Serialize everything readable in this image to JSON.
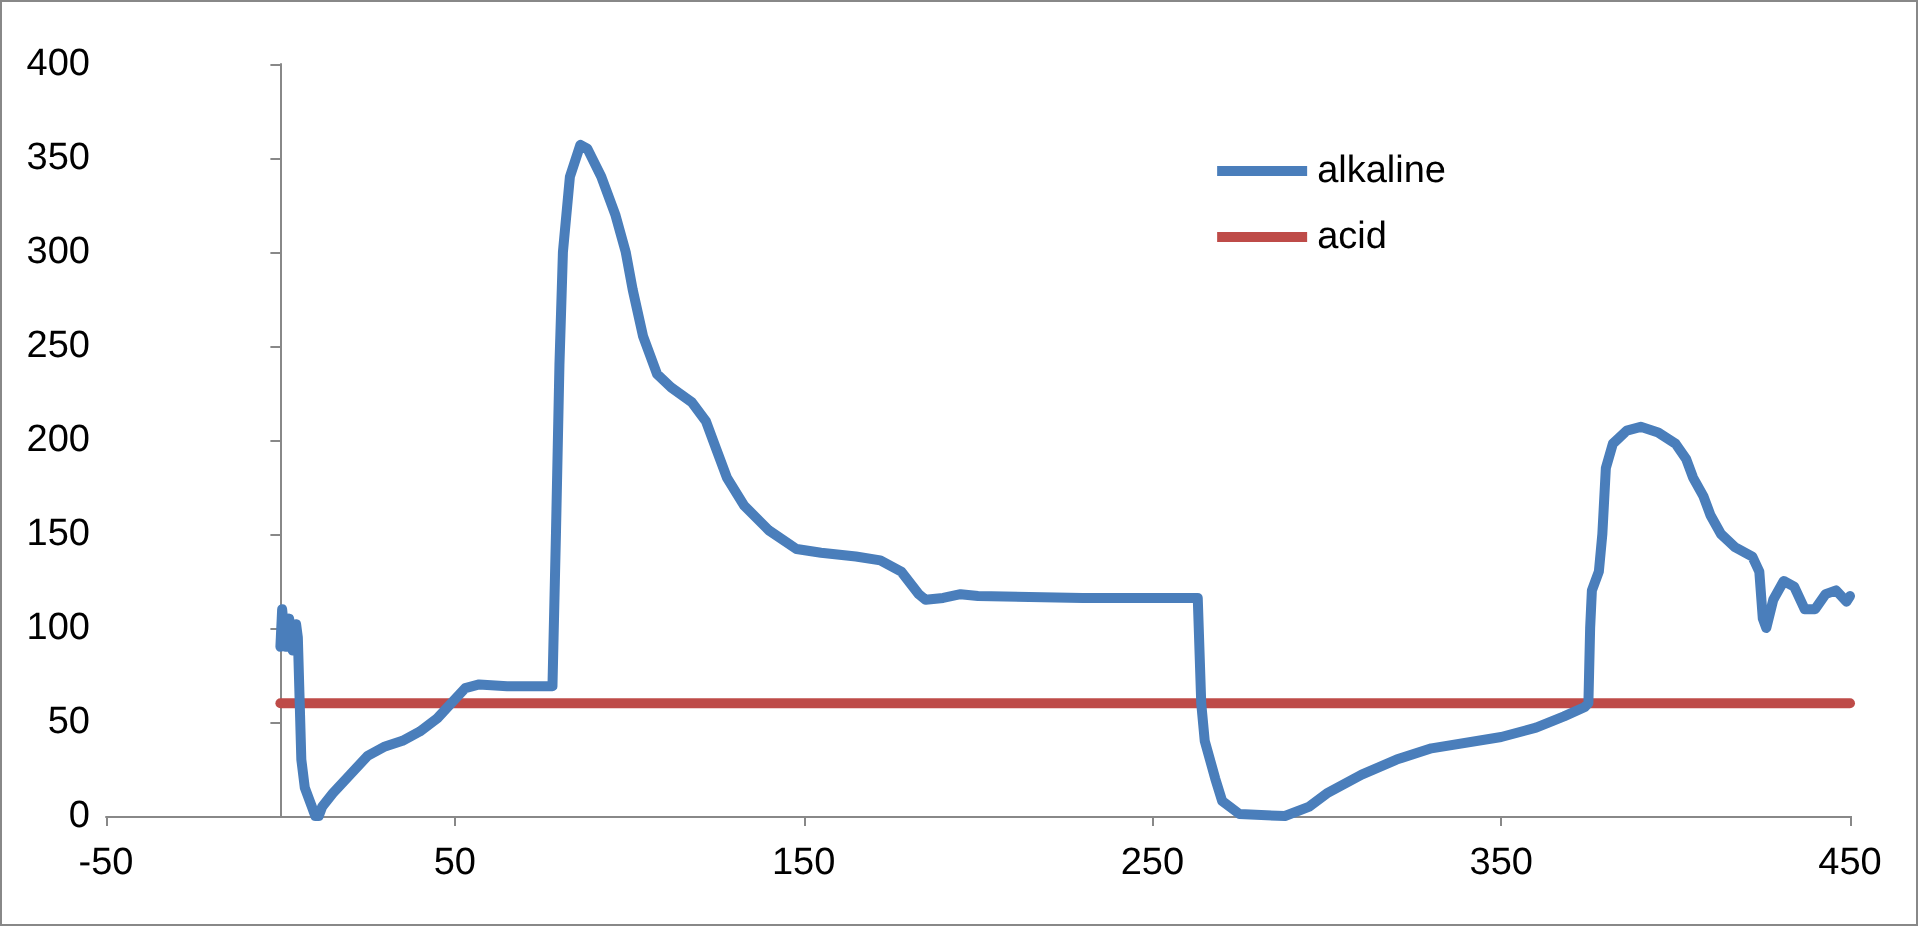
{
  "chart_data": {
    "type": "line",
    "xlim": [
      -50,
      450
    ],
    "xticks": [
      -50,
      50,
      150,
      250,
      350,
      450
    ],
    "ylim": [
      0,
      400
    ],
    "yticks": [
      0,
      50,
      100,
      150,
      200,
      250,
      300,
      350,
      400
    ],
    "grid": false,
    "legend": "top right",
    "marker": "none",
    "line_style": "solid",
    "series": [
      {
        "name": "alkaline",
        "color": "#4a7ebb",
        "x": [
          0,
          0.5,
          1.5,
          2.5,
          3.5,
          4.5,
          5,
          6,
          7,
          9,
          10,
          11,
          12,
          15,
          20,
          25,
          30,
          35,
          40,
          45,
          50,
          53,
          57,
          65,
          75,
          78,
          79,
          80,
          81,
          83,
          86,
          88,
          92,
          96,
          99,
          101,
          104,
          108,
          112,
          118,
          122,
          125,
          128,
          133,
          140,
          148,
          155,
          165,
          172,
          178,
          183,
          185,
          190,
          195,
          200,
          230,
          263,
          264,
          265,
          268,
          270,
          275,
          288,
          295,
          300,
          310,
          320,
          330,
          350,
          360,
          368,
          374,
          375,
          375.5,
          376,
          378,
          379,
          380,
          382,
          386,
          390,
          395,
          400,
          403,
          405,
          408,
          410,
          413,
          417,
          422,
          424,
          425,
          426,
          428,
          431,
          434,
          437,
          440,
          443,
          446,
          449,
          450
        ],
        "values": [
          90,
          110,
          90,
          105,
          88,
          102,
          95,
          30,
          15,
          5,
          0,
          0,
          5,
          12,
          22,
          32,
          37,
          40,
          45,
          52,
          62,
          68,
          70,
          69,
          69,
          69,
          150,
          240,
          300,
          340,
          357,
          355,
          340,
          320,
          300,
          280,
          255,
          235,
          228,
          220,
          210,
          195,
          180,
          165,
          152,
          142,
          140,
          138,
          136,
          130,
          118,
          115,
          116,
          118,
          117,
          116,
          116,
          60,
          40,
          20,
          8,
          1,
          0,
          5,
          12,
          22,
          30,
          36,
          42,
          47,
          53,
          58,
          60,
          100,
          120,
          130,
          150,
          185,
          198,
          205,
          207,
          204,
          198,
          190,
          180,
          170,
          160,
          150,
          143,
          138,
          130,
          105,
          100,
          115,
          125,
          122,
          110,
          110,
          118,
          120,
          114,
          117
        ]
      },
      {
        "name": "acid",
        "color": "#be4b48",
        "x": [
          0,
          450
        ],
        "values": [
          60,
          60
        ]
      }
    ]
  }
}
